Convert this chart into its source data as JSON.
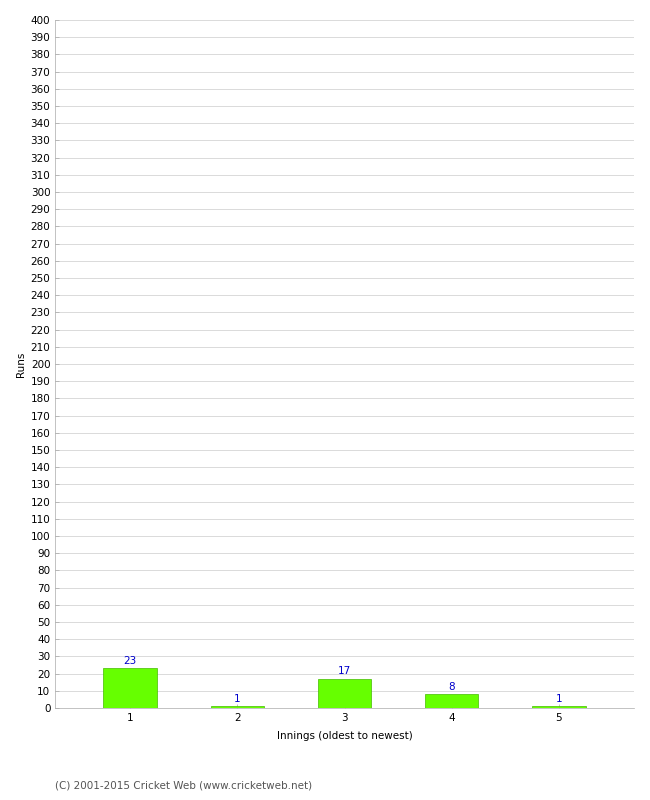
{
  "categories": [
    "1",
    "2",
    "3",
    "4",
    "5"
  ],
  "values": [
    23,
    1,
    17,
    8,
    1
  ],
  "bar_color": "#66ff00",
  "bar_edge_color": "#44bb00",
  "label_color": "#0000cc",
  "ylabel": "Runs",
  "xlabel": "Innings (oldest to newest)",
  "ylim": [
    0,
    400
  ],
  "ytick_major_step": 10,
  "background_color": "#ffffff",
  "grid_color": "#cccccc",
  "footer": "(C) 2001-2015 Cricket Web (www.cricketweb.net)",
  "label_fontsize": 7.5,
  "axis_fontsize": 7.5,
  "footer_fontsize": 7.5,
  "ylabel_fontsize": 7.5
}
